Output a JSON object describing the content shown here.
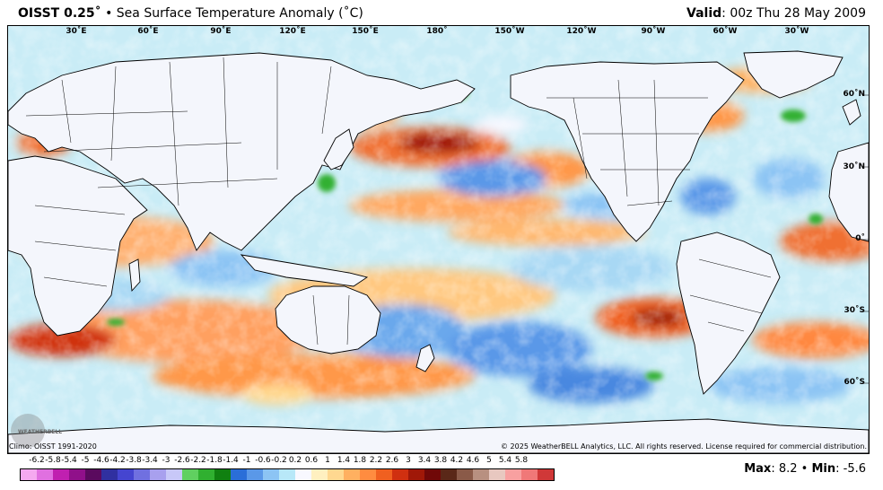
{
  "header": {
    "product": "OISST 0.25˚",
    "separator": "•",
    "variable": "Sea Surface Temperature Anomaly (˚C)",
    "valid_label": "Valid",
    "valid_time": ": 00z Thu 28 May 2009"
  },
  "map": {
    "lon_labels": [
      "30˚E",
      "60˚E",
      "90˚E",
      "120˚E",
      "150˚E",
      "180˚",
      "150˚W",
      "120˚W",
      "90˚W",
      "60˚W",
      "30˚W"
    ],
    "lat_labels": [
      "60˚N",
      "30˚N",
      "0˚",
      "30˚S",
      "60˚S"
    ]
  },
  "footer": {
    "climo": "Climo: OISST 1991-2020",
    "copyright": "© 2025 WeatherBELL Analytics, LLC. All rights reserved. License required for commercial distribution.",
    "logo_text": "WEATHERBELL",
    "max_label": "Max",
    "max_value": ": 8.2",
    "separator": "•",
    "min_label": "Min",
    "min_value": ": -5.6"
  },
  "colorbar": {
    "ticks": [
      "-6.2",
      "-5.8",
      "-5.4",
      "-5",
      "-4.6",
      "-4.2",
      "-3.8",
      "-3.4",
      "-3",
      "-2.6",
      "-2.2",
      "-1.8",
      "-1.4",
      "-1",
      "-0.6",
      "-0.2",
      "0.2",
      "0.6",
      "1",
      "1.4",
      "1.8",
      "2.2",
      "2.6",
      "3",
      "3.4",
      "3.8",
      "4.2",
      "4.6",
      "5",
      "5.4",
      "5.8"
    ],
    "colors": [
      "#f5a9f0",
      "#e070e0",
      "#c020b0",
      "#90108a",
      "#5a0a5e",
      "#3030a0",
      "#4545d0",
      "#7070e0",
      "#a8a0ee",
      "#c8c8f8",
      "#60d060",
      "#30b030",
      "#108010",
      "#2a6ed8",
      "#5a98e8",
      "#8cc4f4",
      "#b8e8f8",
      "#f8f8ff",
      "#fff0c0",
      "#ffd890",
      "#ffb060",
      "#ff8c40",
      "#f06020",
      "#d03010",
      "#a01808",
      "#700808",
      "#5a2818",
      "#8a5a48",
      "#b89080",
      "#e8c8c0",
      "#f8a0a0",
      "#f07878",
      "#d03838"
    ]
  }
}
